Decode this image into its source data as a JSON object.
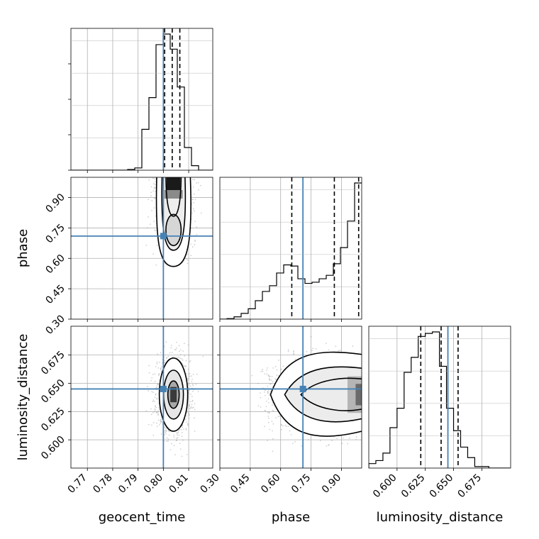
{
  "chart_data": {
    "type": "corner",
    "parameters": [
      "geocent_time",
      "phase",
      "luminosity_distance"
    ],
    "axis_labels": {
      "geocent_time": "geocent_time",
      "phase": "phase",
      "luminosity_distance": "luminosity_distance"
    },
    "ranges": {
      "geocent_time": [
        0.7635,
        0.8195
      ],
      "phase": [
        0.3,
        1.0
      ],
      "luminosity_distance": [
        0.575,
        0.7005
      ]
    },
    "ticks": {
      "geocent_time": {
        "values": [
          0.77,
          0.78,
          0.79,
          0.8,
          0.81
        ],
        "labels": [
          "0.77",
          "0.78",
          "0.79",
          "0.80",
          "0.81"
        ]
      },
      "phase": {
        "values": [
          0.3,
          0.45,
          0.6,
          0.75,
          0.9
        ],
        "labels": [
          "0.30",
          "0.45",
          "0.60",
          "0.75",
          "0.90"
        ]
      },
      "luminosity_distance": {
        "values": [
          0.6,
          0.625,
          0.65,
          0.675
        ],
        "labels": [
          "0.600",
          "0.625",
          "0.650",
          "0.675"
        ]
      }
    },
    "truths": {
      "geocent_time": 0.8,
      "phase": 0.71,
      "luminosity_distance": 0.645
    },
    "quantiles": {
      "geocent_time": [
        0.8005,
        0.8035,
        0.8065
      ],
      "phase": [
        0.655,
        0.865,
        0.985
      ],
      "luminosity_distance": [
        0.621,
        0.639,
        0.654
      ]
    },
    "histograms": {
      "geocent_time": {
        "x_start": 0.7635,
        "bin_width": 0.0028,
        "counts": [
          0,
          0,
          0,
          0,
          0,
          0,
          0,
          0,
          0.5,
          1.5,
          27,
          48,
          83,
          90,
          80,
          55,
          15,
          3,
          0,
          0
        ]
      },
      "phase": {
        "x_start": 0.3,
        "bin_width": 0.035,
        "counts": [
          0,
          0.5,
          2,
          5,
          9,
          16,
          24,
          29,
          40,
          47,
          46,
          35,
          31,
          32,
          35,
          38,
          48,
          62,
          85,
          118
        ]
      },
      "luminosity_distance": {
        "x_start": 0.575,
        "bin_width": 0.00625,
        "counts": [
          3,
          5,
          10,
          27,
          40,
          64,
          74,
          88,
          90,
          91,
          68,
          40,
          25,
          14,
          7,
          1,
          1,
          0,
          0,
          0
        ]
      }
    },
    "colors": {
      "truth": "#4682b4",
      "samples": "#9a9a9a",
      "contour": "#000000",
      "hist": "#000000"
    }
  }
}
